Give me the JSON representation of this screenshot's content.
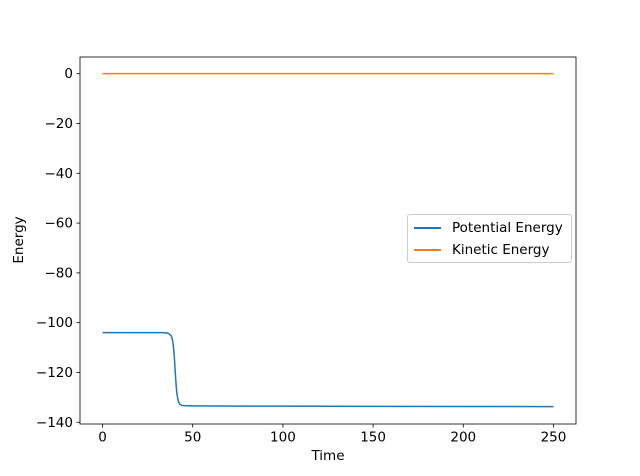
{
  "chart_data": {
    "type": "line",
    "title": "",
    "xlabel": "Time",
    "ylabel": "Energy",
    "xlim": [
      -12.5,
      262.5
    ],
    "ylim": [
      -140.7,
      6.7
    ],
    "xticks": [
      0,
      50,
      100,
      150,
      200,
      250
    ],
    "yticks": [
      0,
      -20,
      -40,
      -60,
      -80,
      -100,
      -120,
      -140
    ],
    "grid": false,
    "legend_position": "center right",
    "series": [
      {
        "name": "Potential Energy",
        "color": "#1f77b4",
        "x": [
          0,
          5,
          10,
          15,
          20,
          25,
          30,
          33,
          35,
          36,
          37,
          38,
          38.5,
          39,
          39.5,
          40,
          40.5,
          41,
          41.5,
          42,
          42.5,
          43,
          44,
          45,
          47,
          50,
          60,
          80,
          100,
          150,
          200,
          250
        ],
        "y": [
          -104,
          -104,
          -104,
          -104,
          -104,
          -104,
          -104,
          -104,
          -104.1,
          -104.2,
          -104.5,
          -105.2,
          -106.1,
          -107.8,
          -111,
          -116,
          -122,
          -127,
          -129.8,
          -131.4,
          -132.3,
          -132.9,
          -133.2,
          -133.3,
          -133.35,
          -133.4,
          -133.45,
          -133.5,
          -133.5,
          -133.6,
          -133.65,
          -133.7
        ]
      },
      {
        "name": "Kinetic Energy",
        "color": "#ff7f0e",
        "x": [
          0,
          250
        ],
        "y": [
          0,
          0
        ]
      }
    ]
  }
}
